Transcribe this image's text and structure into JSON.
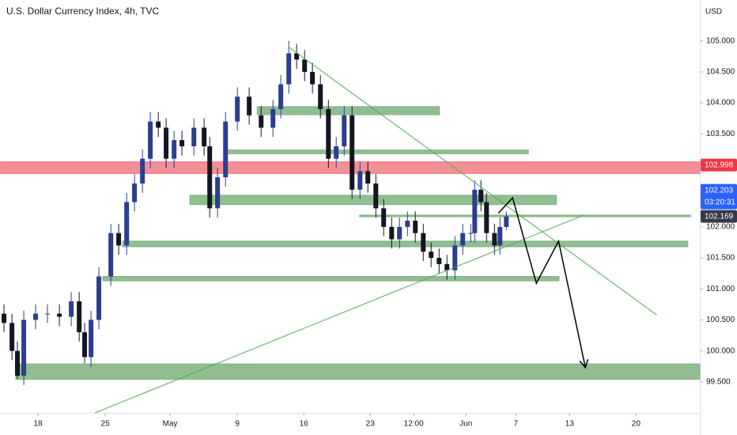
{
  "chart_data": {
    "type": "candlestick",
    "title": "U.S. Dollar Currency Index, 4h, TVC",
    "y_axis_label": "USD",
    "up_color": "#2a3f8f",
    "down_color": "#131722",
    "ylim": [
      99.0,
      105.66
    ],
    "yticks": [
      {
        "value": 99.5,
        "label": "99.500"
      },
      {
        "value": 100,
        "label": "100.000"
      },
      {
        "value": 100.5,
        "label": "100.500"
      },
      {
        "value": 101,
        "label": "101.000"
      },
      {
        "value": 101.5,
        "label": "101.500"
      },
      {
        "value": 102,
        "label": "102.000"
      },
      {
        "value": 102.5,
        "label": "102.500"
      },
      {
        "value": 103,
        "label": "103.000"
      },
      {
        "value": 103.5,
        "label": "103.500"
      },
      {
        "value": 104,
        "label": "104.000"
      },
      {
        "value": 104.5,
        "label": "104.500"
      },
      {
        "value": 105,
        "label": "105.000"
      }
    ],
    "xlim": [
      -2.86,
      49.8
    ],
    "xticks": [
      {
        "value": 0,
        "label": "18"
      },
      {
        "value": 5.06,
        "label": "25"
      },
      {
        "value": 9.94,
        "label": "May"
      },
      {
        "value": 15,
        "label": "9"
      },
      {
        "value": 20,
        "label": "16"
      },
      {
        "value": 25,
        "label": "23"
      },
      {
        "value": 28.27,
        "label": "12:00"
      },
      {
        "value": 32.2,
        "label": "Jun"
      },
      {
        "value": 35.95,
        "label": "7"
      },
      {
        "value": 40,
        "label": "13"
      },
      {
        "value": 45,
        "label": "20"
      }
    ],
    "x": [
      -2.56,
      -1.96,
      -1.55,
      -1.07,
      -0.18,
      0.71,
      1.61,
      2.5,
      3.1,
      3.51,
      3.99,
      4.58,
      5.48,
      6.07,
      6.67,
      7.26,
      7.86,
      8.45,
      9.05,
      9.64,
      10.24,
      10.83,
      11.73,
      12.5,
      12.92,
      13.51,
      14.11,
      15,
      15.89,
      16.79,
      17.68,
      18.27,
      18.87,
      19.46,
      20.06,
      20.65,
      21.25,
      21.85,
      22.44,
      23.04,
      23.63,
      24.23,
      24.82,
      25.42,
      26.01,
      26.61,
      27.2,
      27.8,
      28.39,
      28.99,
      29.58,
      30.18,
      30.77,
      31.37,
      31.96,
      32.56,
      32.86,
      33.33,
      33.75,
      34.35,
      34.76,
      35.24
    ],
    "open": [
      100.6,
      100.45,
      100.0,
      99.6,
      100.5,
      100.6,
      100.6,
      100.55,
      100.8,
      100.3,
      99.9,
      100.5,
      101.2,
      101.9,
      101.7,
      102.4,
      102.7,
      103.1,
      103.7,
      103.6,
      103.1,
      103.4,
      103.3,
      103.6,
      103.3,
      102.3,
      102.8,
      103.7,
      104.1,
      103.8,
      103.6,
      103.9,
      104.3,
      104.8,
      104.7,
      104.5,
      104.3,
      103.9,
      103.1,
      103.3,
      103.8,
      102.6,
      102.9,
      102.7,
      102.3,
      102.0,
      101.8,
      102.0,
      102.1,
      101.9,
      101.6,
      101.5,
      101.4,
      101.3,
      101.7,
      101.9,
      101.9,
      102.6,
      102.4,
      101.9,
      101.7,
      102.0
    ],
    "high": [
      100.75,
      100.6,
      100.15,
      100.65,
      100.75,
      100.75,
      100.75,
      100.95,
      100.95,
      100.45,
      100.65,
      101.35,
      102.05,
      102.05,
      102.55,
      102.85,
      103.25,
      103.85,
      103.85,
      103.75,
      103.55,
      103.55,
      103.75,
      103.75,
      103.45,
      102.95,
      103.85,
      104.25,
      104.25,
      103.95,
      104.05,
      104.45,
      105.0,
      104.95,
      104.85,
      104.65,
      104.45,
      104.05,
      103.45,
      103.95,
      103.95,
      103.05,
      103.05,
      102.85,
      102.45,
      102.15,
      102.15,
      102.25,
      102.25,
      102.05,
      101.75,
      101.65,
      101.55,
      101.85,
      102.05,
      102.05,
      102.75,
      102.75,
      102.55,
      102.05,
      102.15,
      102.25
    ],
    "low": [
      100.3,
      99.85,
      99.55,
      99.45,
      100.35,
      100.45,
      100.4,
      100.4,
      100.15,
      99.8,
      99.75,
      100.35,
      101.05,
      101.55,
      101.55,
      102.25,
      102.55,
      102.95,
      103.45,
      102.95,
      102.95,
      103.15,
      103.15,
      103.15,
      102.15,
      102.15,
      102.65,
      103.55,
      103.65,
      103.45,
      103.45,
      103.75,
      104.15,
      104.55,
      104.35,
      104.15,
      103.75,
      102.95,
      102.95,
      103.15,
      102.45,
      102.45,
      102.55,
      102.15,
      101.85,
      101.65,
      101.65,
      101.85,
      101.75,
      101.45,
      101.35,
      101.25,
      101.15,
      101.15,
      101.55,
      101.75,
      101.75,
      102.25,
      101.75,
      101.55,
      101.55,
      101.95
    ],
    "close": [
      100.45,
      100.0,
      99.6,
      100.5,
      100.6,
      100.6,
      100.55,
      100.8,
      100.3,
      99.9,
      100.5,
      101.2,
      101.9,
      101.7,
      102.4,
      102.7,
      103.1,
      103.7,
      103.6,
      103.1,
      103.4,
      103.3,
      103.6,
      103.3,
      102.3,
      102.8,
      103.7,
      104.1,
      103.8,
      103.6,
      103.9,
      104.3,
      104.8,
      104.7,
      104.5,
      104.3,
      103.9,
      103.1,
      103.3,
      103.8,
      102.6,
      102.9,
      102.7,
      102.3,
      102.0,
      101.8,
      102.0,
      102.1,
      101.9,
      101.6,
      101.5,
      101.4,
      101.3,
      101.7,
      101.9,
      101.9,
      102.6,
      102.4,
      101.9,
      101.7,
      102.0,
      102.17
    ],
    "zones": [
      {
        "x": [
          16.5,
          30.2
        ],
        "y": [
          103.81,
          103.94
        ],
        "color": "#7fb27f"
      },
      {
        "x": [
          14.1,
          36.9
        ],
        "y": [
          103.18,
          103.24
        ],
        "color": "#7fb27f"
      },
      {
        "x": [
          -2.86,
          49.8
        ],
        "y": [
          102.86,
          103.05
        ],
        "color": "#f07c86"
      },
      {
        "x": [
          11.43,
          39.0
        ],
        "y": [
          102.36,
          102.51
        ],
        "color": "#7fb27f"
      },
      {
        "x": [
          24.2,
          49.1
        ],
        "y": [
          102.17,
          102.19
        ],
        "color": "#7fb27f"
      },
      {
        "x": [
          6.37,
          48.9
        ],
        "y": [
          101.68,
          101.77
        ],
        "color": "#7fb27f"
      },
      {
        "x": [
          4.88,
          39.2
        ],
        "y": [
          101.13,
          101.2
        ],
        "color": "#7fb27f"
      },
      {
        "x": [
          -1.67,
          49.8
        ],
        "y": [
          99.54,
          99.79
        ],
        "color": "#7fb27f"
      }
    ],
    "trend_lines": [
      {
        "x": [
          18.87,
          46.55
        ],
        "y": [
          104.9,
          100.58
        ],
        "color": "#4caf50"
      },
      {
        "x": [
          4.29,
          41.07
        ],
        "y": [
          99.0,
          102.19
        ],
        "color": "#4caf50"
      }
    ],
    "projection": {
      "x": [
        34.64,
        35.71,
        37.5,
        39.17,
        41.19
      ],
      "y": [
        102.22,
        102.47,
        101.09,
        101.77,
        99.73
      ],
      "color": "#000000"
    },
    "price_labels": [
      {
        "value": 102.998,
        "color": "#f23645"
      },
      {
        "value": 102.203,
        "color": "#2962ff"
      },
      {
        "value": 102.169,
        "color": "#363a45"
      }
    ],
    "countdown": "03:20:31"
  }
}
